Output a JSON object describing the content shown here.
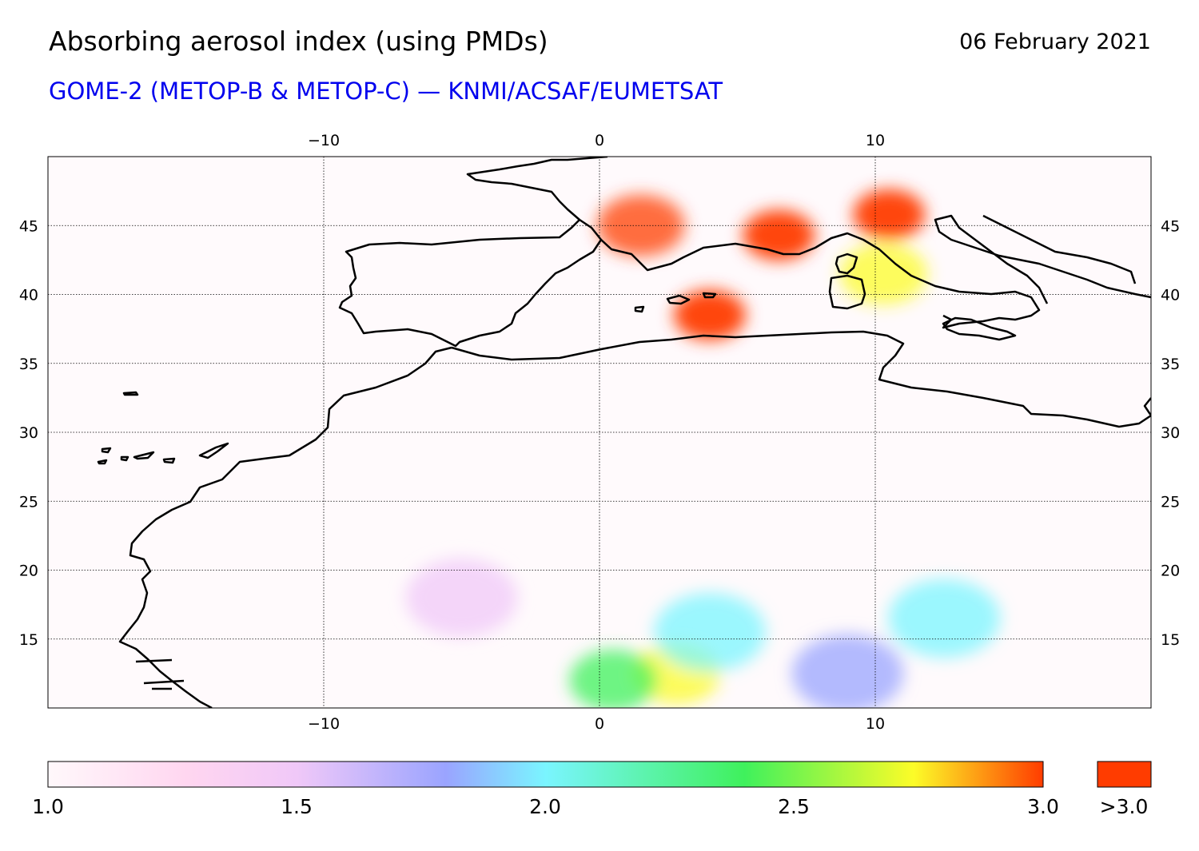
{
  "header": {
    "title": "Absorbing aerosol index (using PMDs)",
    "subtitle": "GOME-2 (METOP-B & METOP-C) — KNMI/ACSAF/EUMETSAT",
    "date": "06 February 2021"
  },
  "map": {
    "lon_range": [
      -20,
      20
    ],
    "lat_range": [
      10,
      50
    ],
    "lon_ticks": [
      -10,
      0,
      10
    ],
    "lon_tick_labels": [
      "−10",
      "0",
      "10"
    ],
    "lat_ticks": [
      15,
      20,
      25,
      30,
      35,
      40,
      45
    ],
    "lat_tick_labels": [
      "15",
      "20",
      "25",
      "30",
      "35",
      "40",
      "45"
    ],
    "grid": "dotted",
    "aerosol_regions": [
      {
        "lon": 4,
        "lat": 38.5,
        "value": 3.3
      },
      {
        "lon": 6.5,
        "lat": 44.3,
        "value": 3.2
      },
      {
        "lon": 10.5,
        "lat": 45.8,
        "value": 3.1
      },
      {
        "lon": 1.5,
        "lat": 45,
        "value": 2.9
      },
      {
        "lon": 10.3,
        "lat": 41.5,
        "value": 2.6
      },
      {
        "lon": 2.8,
        "lat": 12.5,
        "value": 2.6
      },
      {
        "lon": 0.5,
        "lat": 12,
        "value": 2.5
      },
      {
        "lon": 4,
        "lat": 15.5,
        "value": 2.2
      },
      {
        "lon": 12.5,
        "lat": 16.5,
        "value": 2.0
      },
      {
        "lon": 9,
        "lat": 12.5,
        "value": 1.9
      },
      {
        "lon": -5,
        "lat": 18,
        "value": 1.7
      }
    ]
  },
  "colorbar": {
    "min": 1.0,
    "max": 3.0,
    "tick_labels": [
      "1.0",
      "1.5",
      "2.0",
      "2.5",
      "3.0"
    ],
    "overflow_label": ">3.0",
    "overflow_color": "#ff3c00",
    "colors": [
      "#fff8fb",
      "#ffd6f0",
      "#f0c8f8",
      "#9aa4ff",
      "#7af5ff",
      "#3ff15c",
      "#fcfc28",
      "#ff3c00"
    ]
  }
}
